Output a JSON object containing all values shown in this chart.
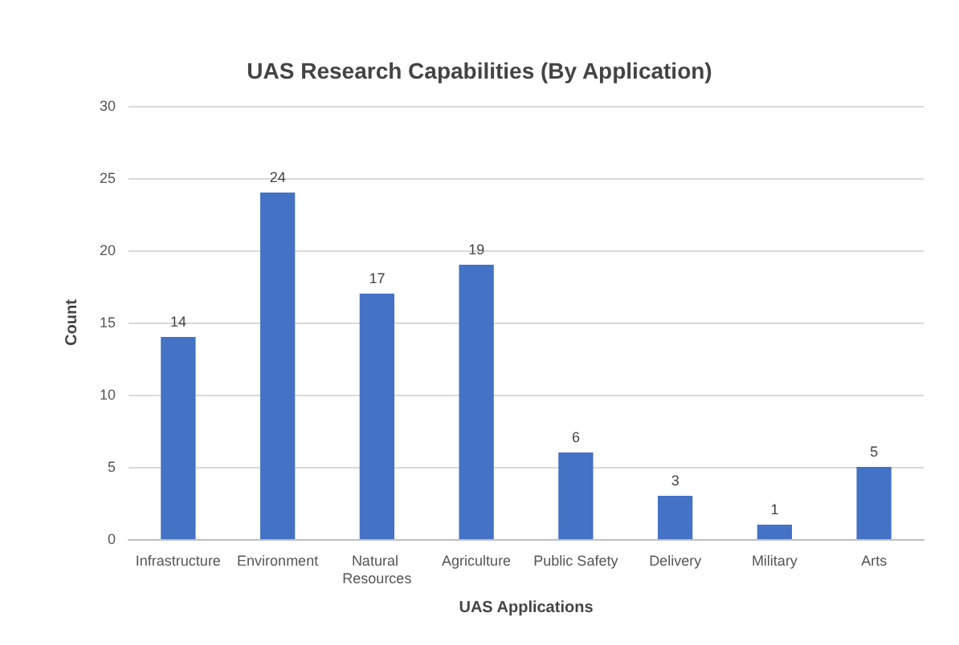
{
  "chart_data": {
    "type": "bar",
    "title": "UAS Research Capabilities (By Application)",
    "xlabel": "UAS Applications",
    "ylabel": "Count",
    "categories": [
      "Infrastructure",
      "Environment",
      "Natural Resources",
      "Agriculture",
      "Public Safety",
      "Delivery",
      "Military",
      "Arts"
    ],
    "values": [
      14,
      24,
      17,
      19,
      6,
      3,
      1,
      5
    ],
    "color": "#4472c4",
    "ylim": [
      0,
      30
    ],
    "yticks": [
      0,
      5,
      10,
      15,
      20,
      25,
      30
    ],
    "grid": "y",
    "data_labels": true
  }
}
